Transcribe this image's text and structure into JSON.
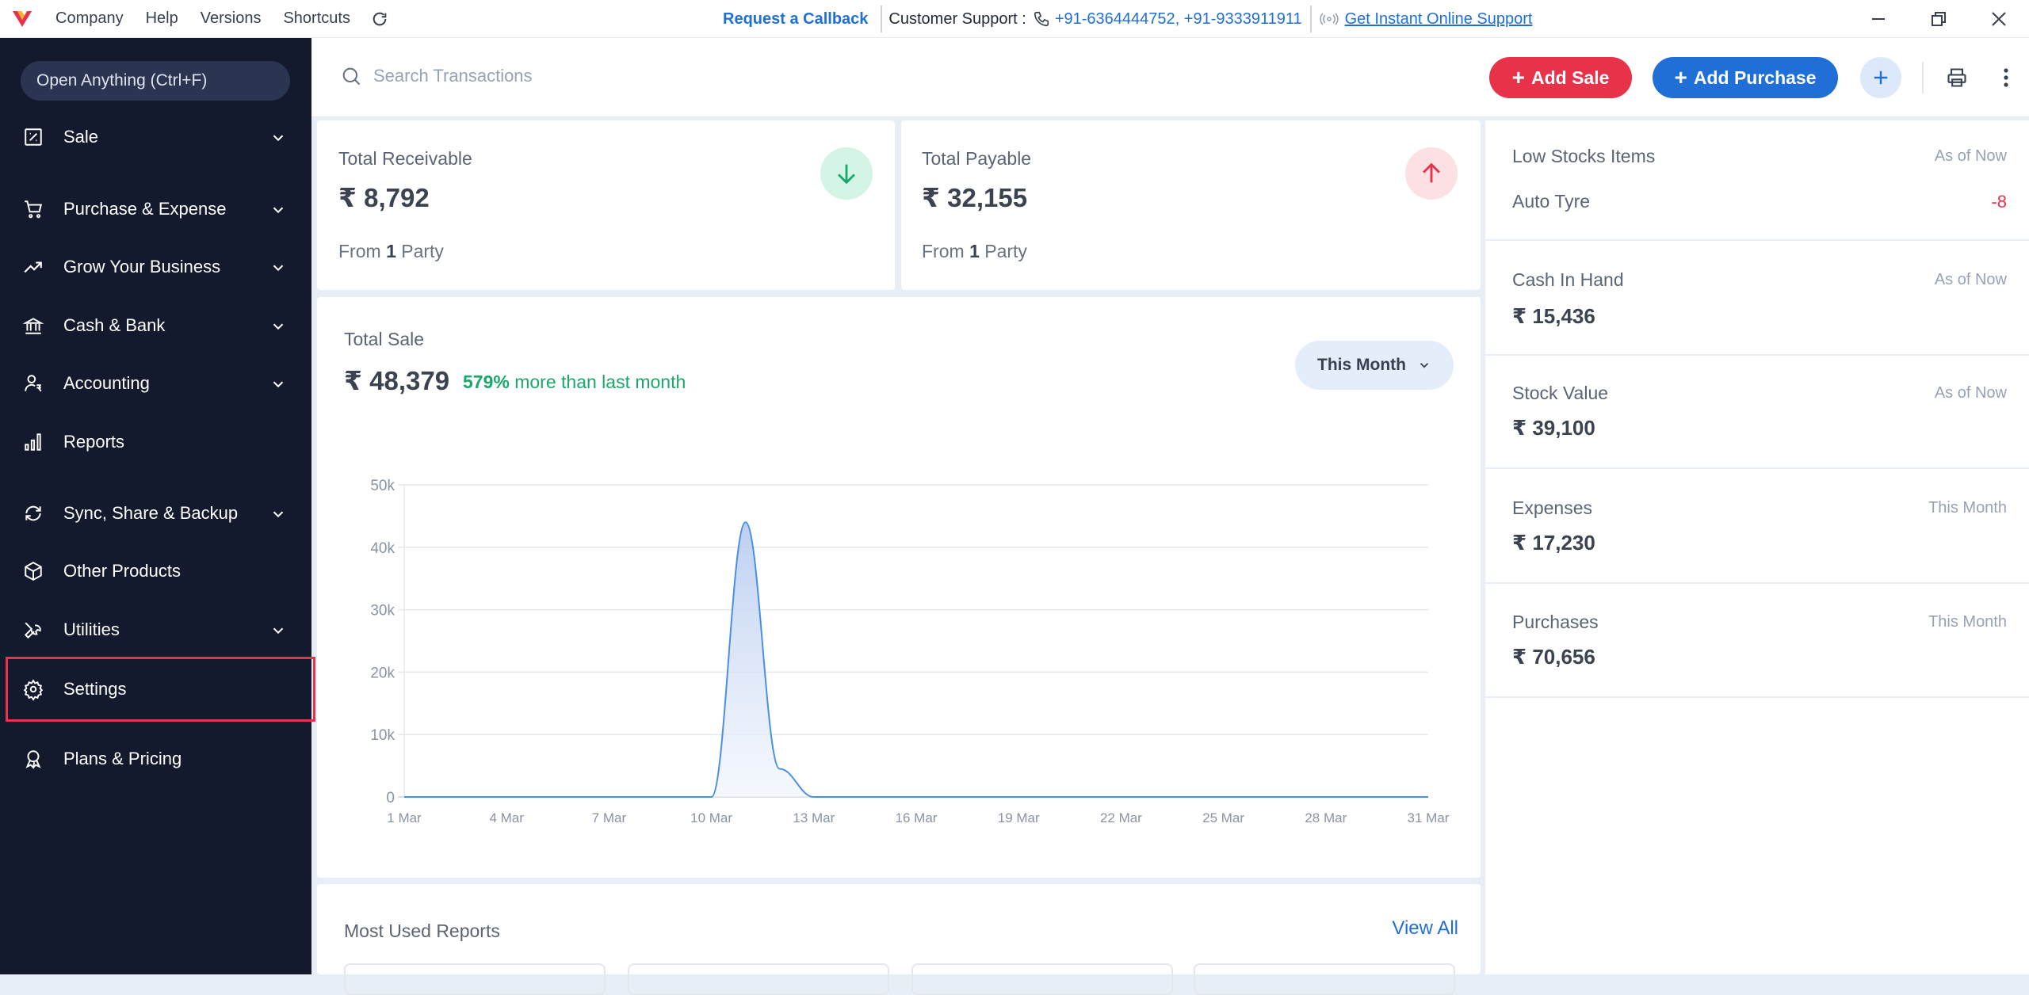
{
  "topbar": {
    "menu": [
      "Company",
      "Help",
      "Versions",
      "Shortcuts"
    ],
    "callback": "Request a Callback",
    "support_label": "Customer Support :",
    "support_phone": "+91-6364444752, +91-9333911911",
    "online_support": "Get Instant Online Support"
  },
  "sidebar": {
    "open_anything": "Open Anything (Ctrl+F)",
    "items": [
      {
        "label": "Sale",
        "icon": "sale-icon",
        "chevron": true
      },
      {
        "label": "Purchase & Expense",
        "icon": "cart-icon",
        "chevron": true
      },
      {
        "label": "Grow Your Business",
        "icon": "trending-up-icon",
        "chevron": true
      },
      {
        "label": "Cash & Bank",
        "icon": "bank-icon",
        "chevron": true
      },
      {
        "label": "Accounting",
        "icon": "accounting-icon",
        "chevron": true
      },
      {
        "label": "Reports",
        "icon": "reports-icon",
        "chevron": false
      },
      {
        "label": "Sync, Share & Backup",
        "icon": "sync-icon",
        "chevron": true
      },
      {
        "label": "Other Products",
        "icon": "box-icon",
        "chevron": false
      },
      {
        "label": "Utilities",
        "icon": "wrench-icon",
        "chevron": true
      },
      {
        "label": "Settings",
        "icon": "gear-icon",
        "chevron": false,
        "selected": true
      },
      {
        "label": "Plans & Pricing",
        "icon": "award-icon",
        "chevron": false
      }
    ]
  },
  "search": {
    "placeholder": "Search Transactions"
  },
  "actions": {
    "add_sale": "Add Sale",
    "add_purchase": "Add Purchase"
  },
  "receivable": {
    "title": "Total Receivable",
    "amount": "₹ 8,792",
    "from_prefix": "From ",
    "count": "1",
    "from_suffix": " Party"
  },
  "payable": {
    "title": "Total Payable",
    "amount": "₹ 32,155",
    "from_prefix": "From ",
    "count": "1",
    "from_suffix": " Party"
  },
  "total_sale": {
    "title": "Total Sale",
    "amount": "₹ 48,379",
    "growth_pct": "579%",
    "growth_text": " more than last month",
    "period": "This Month"
  },
  "chart_data": {
    "type": "area",
    "x": [
      "1 Mar",
      "2 Mar",
      "3 Mar",
      "4 Mar",
      "5 Mar",
      "6 Mar",
      "7 Mar",
      "8 Mar",
      "9 Mar",
      "10 Mar",
      "11 Mar",
      "12 Mar",
      "13 Mar",
      "14 Mar",
      "15 Mar",
      "16 Mar",
      "17 Mar",
      "18 Mar",
      "19 Mar",
      "20 Mar",
      "21 Mar",
      "22 Mar",
      "23 Mar",
      "24 Mar",
      "25 Mar",
      "26 Mar",
      "27 Mar",
      "28 Mar",
      "29 Mar",
      "30 Mar",
      "31 Mar"
    ],
    "tick_labels": [
      "1 Mar",
      "4 Mar",
      "7 Mar",
      "10 Mar",
      "13 Mar",
      "16 Mar",
      "19 Mar",
      "22 Mar",
      "25 Mar",
      "28 Mar",
      "31 Mar"
    ],
    "values": [
      0,
      0,
      0,
      0,
      0,
      0,
      0,
      0,
      0,
      0,
      44000,
      4500,
      0,
      0,
      0,
      0,
      0,
      0,
      0,
      0,
      0,
      0,
      0,
      0,
      0,
      0,
      0,
      0,
      0,
      0,
      0
    ],
    "yticks": [
      "0",
      "10k",
      "20k",
      "30k",
      "40k",
      "50k"
    ],
    "ylim": [
      0,
      50000
    ],
    "grid": true,
    "color": "#4a90e2"
  },
  "most_used": {
    "title": "Most Used Reports",
    "view_all": "View All"
  },
  "right_panel": {
    "low_stock": {
      "title": "Low Stocks Items",
      "right": "As of Now",
      "item": "Auto Tyre",
      "qty": "-8"
    },
    "cash": {
      "title": "Cash In Hand",
      "right": "As of Now",
      "value": "₹ 15,436"
    },
    "stock": {
      "title": "Stock Value",
      "right": "As of Now",
      "value": "₹ 39,100"
    },
    "expenses": {
      "title": "Expenses",
      "right": "This Month",
      "value": "₹ 17,230"
    },
    "purchases": {
      "title": "Purchases",
      "right": "This Month",
      "value": "₹ 70,656"
    }
  },
  "colors": {
    "accent_red": "#e8324a",
    "accent_blue": "#1f6fd6",
    "sidebar_bg": "#141a2e",
    "positive": "#1aa86a"
  }
}
